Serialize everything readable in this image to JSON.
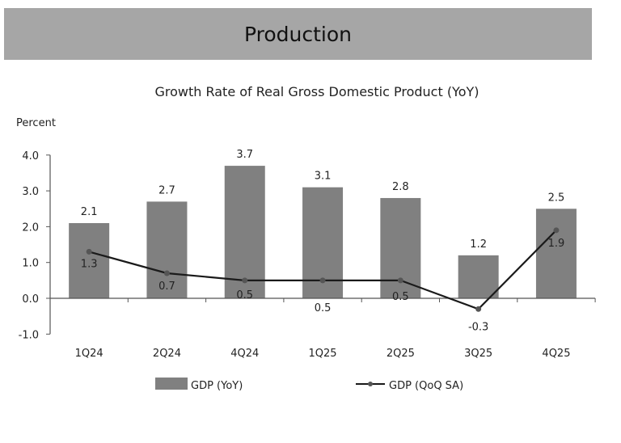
{
  "header": {
    "title": "Production"
  },
  "chart_data": {
    "type": "bar",
    "title": "Growth Rate of Real Gross Domestic Product (YoY)",
    "ylabel": "Percent",
    "xlabel": "",
    "ylim": [
      -1.0,
      4.0
    ],
    "yticks": [
      "4.0",
      "3.0",
      "2.0",
      "1.0",
      "0.0",
      "-1.0"
    ],
    "ytick_values": [
      4,
      3,
      2,
      1,
      0,
      -1
    ],
    "grid": false,
    "legend_position": "bottom",
    "categories": [
      "1Q24",
      "2Q24",
      "4Q24",
      "1Q25",
      "2Q25",
      "3Q25",
      "4Q25"
    ],
    "series": [
      {
        "name": "GDP (YoY)",
        "type": "bar",
        "color": "#808080",
        "values": [
          2.1,
          2.7,
          3.7,
          3.1,
          2.8,
          1.2,
          2.5
        ]
      },
      {
        "name": "GDP (QoQ SA)",
        "type": "line",
        "color": "#1a1a1a",
        "values": [
          1.3,
          0.7,
          0.5,
          0.5,
          0.5,
          -0.3,
          1.9
        ]
      }
    ]
  }
}
